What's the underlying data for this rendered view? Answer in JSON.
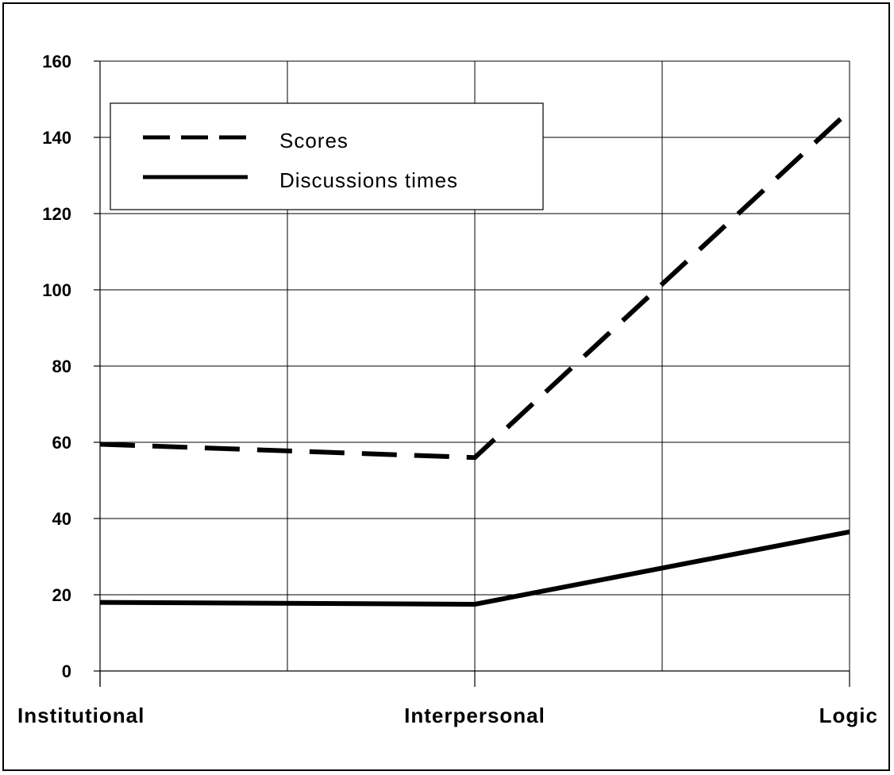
{
  "chart_data": {
    "type": "line",
    "title": "",
    "xlabel": "",
    "ylabel": "",
    "categories": [
      "Institutional",
      "Interpersonal",
      "Logic"
    ],
    "ylim": [
      0,
      160
    ],
    "yticks": [
      0,
      20,
      40,
      60,
      80,
      100,
      120,
      140,
      160
    ],
    "grid": true,
    "legend_position": "top-left",
    "series": [
      {
        "name": "Scores",
        "style": "dashed",
        "color": "#000000",
        "values": [
          59.5,
          56,
          147
        ]
      },
      {
        "name": "Discussions times",
        "style": "solid",
        "color": "#000000",
        "values": [
          18,
          17.5,
          36.5
        ]
      }
    ]
  }
}
